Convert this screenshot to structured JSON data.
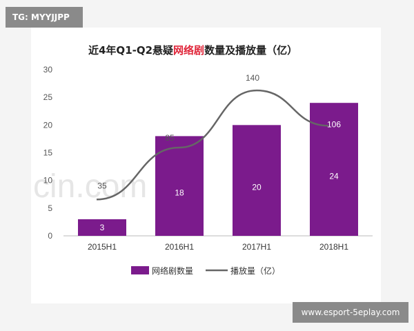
{
  "watermark_top": "TG: MYYJJPP",
  "watermark_bottom": "www.esport-5eplay.com",
  "watermark_center": "cin.com",
  "title_prefix": "近4年Q1-Q2悬疑",
  "title_highlight": "网络剧",
  "title_suffix": "数量及播放量（亿）",
  "colors": {
    "bar": "#7b1b8c",
    "line": "#666666",
    "title_highlight": "#e0263a"
  },
  "chart_data": {
    "type": "bar",
    "categories": [
      "2015H1",
      "2016H1",
      "2017H1",
      "2018H1"
    ],
    "ylim": [
      0,
      30
    ],
    "yticks": [
      0,
      5,
      10,
      15,
      20,
      25,
      30
    ],
    "series": [
      {
        "name": "网络剧数量",
        "type": "bar",
        "values": [
          3,
          18,
          20,
          24
        ]
      },
      {
        "name": "播放量（亿）",
        "type": "line",
        "values": [
          35,
          85,
          140,
          106
        ]
      }
    ],
    "line_labels": [
      "35",
      "85",
      "140",
      "106"
    ],
    "bar_labels": [
      "3",
      "18",
      "20",
      "24"
    ],
    "legend": [
      "网络剧数量",
      "播放量（亿）"
    ],
    "legend_position": "bottom"
  }
}
